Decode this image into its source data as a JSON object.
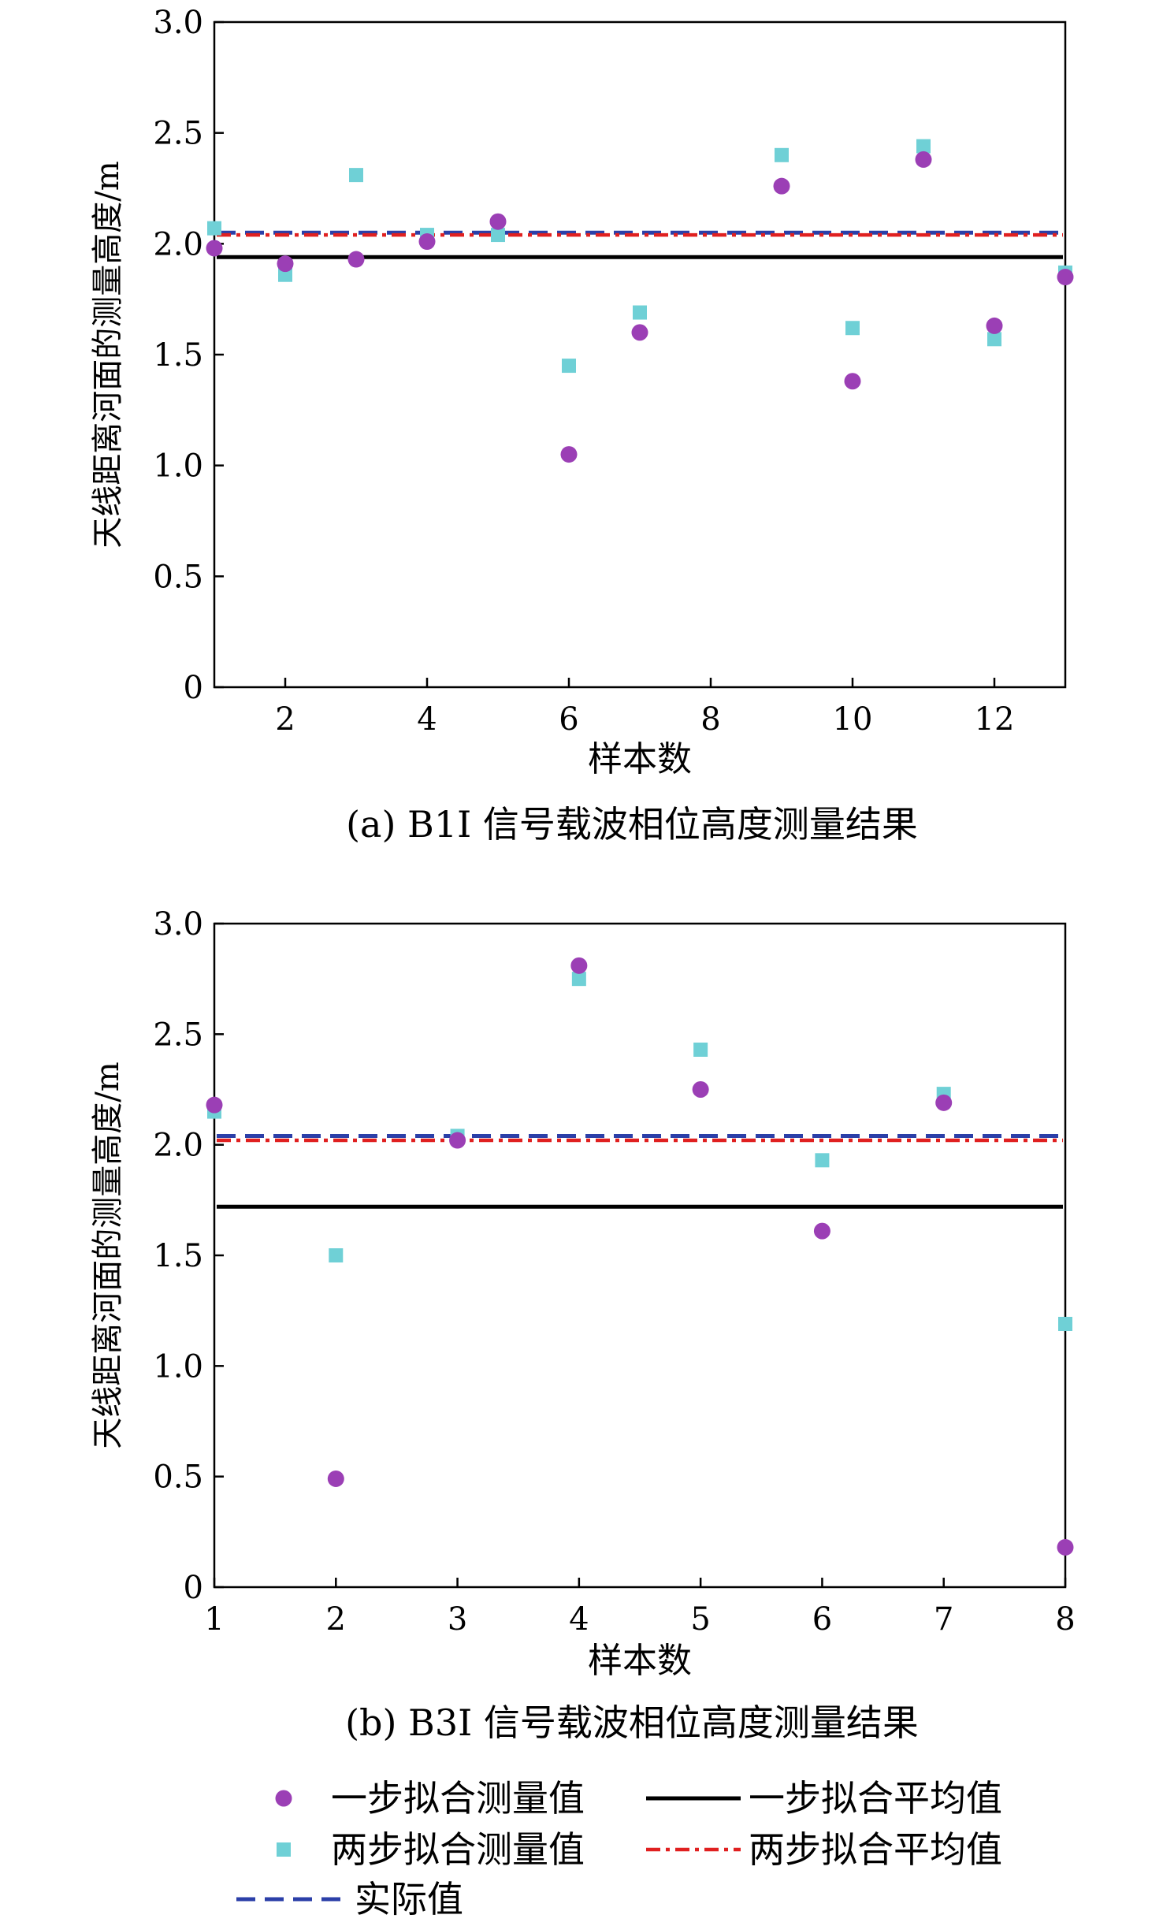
{
  "colors": {
    "one_step_points": "#9b3fb5",
    "two_step_points": "#6fd0d6",
    "one_step_mean": "#000000",
    "two_step_mean": "#e02020",
    "actual": "#2b3fa8"
  },
  "legend": {
    "items": [
      {
        "label": "一步拟合测量值",
        "kind": "circle",
        "color_key": "one_step_points"
      },
      {
        "label": "一步拟合平均值",
        "kind": "solid",
        "color_key": "one_step_mean"
      },
      {
        "label": "两步拟合测量值",
        "kind": "square",
        "color_key": "two_step_points"
      },
      {
        "label": "两步拟合平均值",
        "kind": "dashdot",
        "color_key": "two_step_mean"
      },
      {
        "label": "实际值",
        "kind": "dashed",
        "color_key": "actual"
      }
    ]
  },
  "chart_data": [
    {
      "type": "scatter",
      "caption": "(a) B1I 信号载波相位高度测量结果",
      "xlabel": "样本数",
      "ylabel": "天线距离河面的测量高度/m",
      "xlim": [
        1,
        13
      ],
      "ylim": [
        0,
        3.0
      ],
      "xticks": [
        2,
        4,
        6,
        8,
        10,
        12
      ],
      "yticks": [
        0,
        0.5,
        1.0,
        1.5,
        2.0,
        2.5,
        3.0
      ],
      "ytick_labels": [
        "0",
        "0.5",
        "1.0",
        "1.5",
        "2.0",
        "2.5",
        "3.0"
      ],
      "series": [
        {
          "name": "一步拟合测量值",
          "marker": "circle",
          "x": [
            1,
            2,
            3,
            4,
            5,
            6,
            7,
            9,
            10,
            11,
            12,
            13
          ],
          "y": [
            1.98,
            1.91,
            1.93,
            2.01,
            2.1,
            1.05,
            1.6,
            2.26,
            1.38,
            2.38,
            1.63,
            1.85
          ]
        },
        {
          "name": "两步拟合测量值",
          "marker": "square",
          "x": [
            1,
            2,
            3,
            4,
            5,
            6,
            7,
            9,
            10,
            11,
            12,
            13
          ],
          "y": [
            2.07,
            1.86,
            2.31,
            2.04,
            2.04,
            1.45,
            1.69,
            2.4,
            1.62,
            2.44,
            1.57,
            1.87
          ]
        }
      ],
      "lines": [
        {
          "name": "实际值",
          "y": 2.05,
          "style": "dashed"
        },
        {
          "name": "两步拟合平均值",
          "y": 2.04,
          "style": "dashdot"
        },
        {
          "name": "一步拟合平均值",
          "y": 1.94,
          "style": "solid"
        }
      ]
    },
    {
      "type": "scatter",
      "caption": "(b) B3I 信号载波相位高度测量结果",
      "xlabel": "样本数",
      "ylabel": "天线距离河面的测量高度/m",
      "xlim": [
        1,
        8
      ],
      "ylim": [
        0,
        3.0
      ],
      "xticks": [
        1,
        2,
        3,
        4,
        5,
        6,
        7,
        8
      ],
      "yticks": [
        0,
        0.5,
        1.0,
        1.5,
        2.0,
        2.5,
        3.0
      ],
      "ytick_labels": [
        "0",
        "0.5",
        "1.0",
        "1.5",
        "2.0",
        "2.5",
        "3.0"
      ],
      "series": [
        {
          "name": "一步拟合测量值",
          "marker": "circle",
          "x": [
            1,
            2,
            3,
            4,
            5,
            6,
            7,
            8
          ],
          "y": [
            2.18,
            0.49,
            2.02,
            2.81,
            2.25,
            1.61,
            2.19,
            0.18
          ]
        },
        {
          "name": "两步拟合测量值",
          "marker": "square",
          "x": [
            1,
            2,
            3,
            4,
            5,
            6,
            7,
            8
          ],
          "y": [
            2.15,
            1.5,
            2.04,
            2.75,
            2.43,
            1.93,
            2.23,
            1.19
          ]
        }
      ],
      "lines": [
        {
          "name": "实际值",
          "y": 2.04,
          "style": "dashed"
        },
        {
          "name": "两步拟合平均值",
          "y": 2.02,
          "style": "dashdot"
        },
        {
          "name": "一步拟合平均值",
          "y": 1.72,
          "style": "solid"
        }
      ]
    }
  ]
}
